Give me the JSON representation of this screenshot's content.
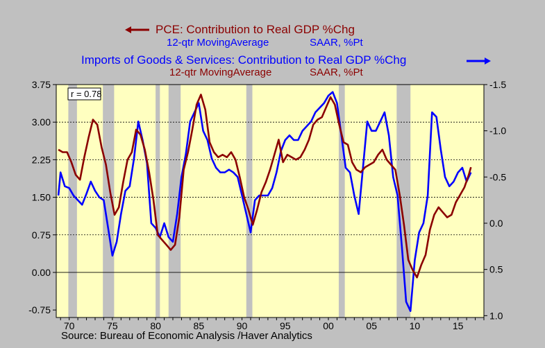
{
  "chart_data": {
    "type": "line",
    "legend": {
      "pce": {
        "arrow": "left",
        "title": "PCE: Contribution to Real GDP %Chg",
        "sub_left": "12-qtr MovingAverage",
        "sub_right": "SAAR, %Pt"
      },
      "imports": {
        "arrow": "right",
        "title": "Imports of Goods & Services: Contribution to Real GDP %Chg",
        "sub_left": "12-qtr MovingAverage",
        "sub_right": "SAAR, %Pt"
      }
    },
    "annotation": "r = 0.78",
    "source": "Source:  Bureau of Economic Analysis /Haver Analytics",
    "x_ticks": [
      "70",
      "75",
      "80",
      "85",
      "90",
      "95",
      "00",
      "05",
      "10",
      "15"
    ],
    "x_tick_years": [
      1970,
      1975,
      1980,
      1985,
      1990,
      1995,
      2000,
      2005,
      2010,
      2015
    ],
    "xlim": [
      1968.5,
      2018.0
    ],
    "left_axis": {
      "ticks": [
        "3.75",
        "3.00",
        "2.25",
        "1.50",
        "0.75",
        "0.00",
        "-0.75"
      ],
      "tick_values": [
        3.75,
        3.0,
        2.25,
        1.5,
        0.75,
        0.0,
        -0.75
      ],
      "ylim": [
        -0.9,
        3.75
      ]
    },
    "right_axis": {
      "ticks": [
        "-1.5",
        "-1.0",
        "-0.5",
        "0.0",
        "0.5",
        "1.0"
      ],
      "tick_values": [
        -1.5,
        -1.0,
        -0.5,
        0.0,
        0.5,
        1.0
      ],
      "ylim": [
        -1.5,
        1.02
      ],
      "inverted": true
    },
    "gridlines_left": [
      3.0,
      2.25,
      1.5,
      0.75,
      0.0
    ],
    "recessions": [
      [
        1969.9,
        1970.9
      ],
      [
        1973.9,
        1975.2
      ],
      [
        1980.0,
        1980.5
      ],
      [
        1981.5,
        1982.9
      ],
      [
        1990.5,
        1991.2
      ],
      [
        2001.2,
        2001.9
      ],
      [
        2007.9,
        2009.5
      ]
    ],
    "colors": {
      "pce": "#8b0000",
      "imports": "#0000ff",
      "plot_bg": "#ffffc0",
      "recession": "#c0c0c0",
      "background": "#c0c0c0"
    },
    "series": [
      {
        "key": "pce",
        "name": "PCE: Contribution to Real GDP %Chg",
        "axis": "left",
        "x": [
          1968.75,
          1969.25,
          1969.75,
          1970.25,
          1970.75,
          1971.25,
          1971.75,
          1972.25,
          1972.75,
          1973.25,
          1973.75,
          1974.25,
          1974.75,
          1975.25,
          1975.75,
          1976.25,
          1976.75,
          1977.25,
          1977.75,
          1978.25,
          1978.75,
          1979.25,
          1979.75,
          1980.25,
          1980.75,
          1981.25,
          1981.75,
          1982.25,
          1982.75,
          1983.25,
          1983.75,
          1984.25,
          1984.75,
          1985.25,
          1985.75,
          1986.25,
          1986.75,
          1987.25,
          1987.75,
          1988.25,
          1988.75,
          1989.25,
          1989.75,
          1990.25,
          1990.75,
          1991.25,
          1991.75,
          1992.25,
          1992.75,
          1993.25,
          1993.75,
          1994.25,
          1994.75,
          1995.25,
          1995.75,
          1996.25,
          1996.75,
          1997.25,
          1997.75,
          1998.25,
          1998.75,
          1999.25,
          1999.75,
          2000.25,
          2000.75,
          2001.25,
          2001.75,
          2002.25,
          2002.75,
          2003.25,
          2003.75,
          2004.25,
          2004.75,
          2005.25,
          2005.75,
          2006.25,
          2006.75,
          2007.25,
          2007.75,
          2008.25,
          2008.75,
          2009.25,
          2009.75,
          2010.25,
          2010.75,
          2011.25,
          2011.75,
          2012.25,
          2012.75,
          2013.25,
          2013.75,
          2014.25,
          2014.75,
          2015.25,
          2015.75,
          2016.25,
          2016.5
        ],
        "values": [
          2.45,
          2.4,
          2.4,
          2.2,
          1.95,
          1.85,
          2.3,
          2.7,
          3.05,
          2.95,
          2.5,
          2.15,
          1.6,
          1.15,
          1.3,
          1.8,
          2.25,
          2.4,
          2.85,
          2.75,
          2.45,
          2.0,
          1.45,
          0.75,
          0.65,
          0.55,
          0.45,
          0.55,
          1.1,
          2.05,
          2.4,
          2.85,
          3.35,
          3.55,
          3.25,
          2.6,
          2.4,
          2.3,
          2.35,
          2.3,
          2.4,
          2.25,
          1.9,
          1.5,
          1.25,
          0.95,
          1.25,
          1.6,
          1.8,
          2.05,
          2.35,
          2.65,
          2.2,
          2.35,
          2.3,
          2.25,
          2.3,
          2.45,
          2.65,
          2.95,
          3.05,
          3.1,
          3.3,
          3.5,
          3.35,
          2.95,
          2.6,
          2.55,
          2.2,
          2.05,
          2.0,
          2.1,
          2.15,
          2.2,
          2.35,
          2.45,
          2.25,
          2.15,
          2.05,
          1.55,
          0.95,
          0.25,
          0.05,
          -0.1,
          0.15,
          0.35,
          0.85,
          1.15,
          1.3,
          1.2,
          1.1,
          1.15,
          1.4,
          1.55,
          1.7,
          1.95,
          2.1
        ]
      },
      {
        "key": "imports",
        "name": "Imports of Goods & Services: Contribution to Real GDP %Chg",
        "axis": "right",
        "x": [
          1968.75,
          1969.0,
          1969.5,
          1970.0,
          1970.5,
          1971.0,
          1971.5,
          1972.0,
          1972.5,
          1973.0,
          1973.5,
          1974.0,
          1974.5,
          1975.0,
          1975.5,
          1976.0,
          1976.5,
          1977.0,
          1977.5,
          1978.0,
          1978.5,
          1979.0,
          1979.5,
          1980.0,
          1980.5,
          1981.0,
          1981.5,
          1982.0,
          1982.5,
          1983.0,
          1983.5,
          1984.0,
          1984.5,
          1985.0,
          1985.5,
          1986.0,
          1986.5,
          1987.0,
          1987.5,
          1988.0,
          1988.5,
          1989.0,
          1989.5,
          1990.0,
          1990.5,
          1991.0,
          1991.5,
          1992.0,
          1992.5,
          1993.0,
          1993.5,
          1994.0,
          1994.5,
          1995.0,
          1995.5,
          1996.0,
          1996.5,
          1997.0,
          1997.5,
          1998.0,
          1998.5,
          1999.0,
          1999.5,
          2000.0,
          2000.5,
          2001.0,
          2001.5,
          2002.0,
          2002.5,
          2003.0,
          2003.5,
          2004.0,
          2004.5,
          2005.0,
          2005.5,
          2006.0,
          2006.5,
          2007.0,
          2007.5,
          2008.0,
          2008.5,
          2009.0,
          2009.5,
          2010.0,
          2010.5,
          2011.0,
          2011.5,
          2012.0,
          2012.5,
          2013.0,
          2013.5,
          2014.0,
          2014.5,
          2015.0,
          2015.5,
          2016.0,
          2016.5
        ],
        "values": [
          -0.3,
          -0.55,
          -0.4,
          -0.38,
          -0.3,
          -0.25,
          -0.2,
          -0.32,
          -0.45,
          -0.35,
          -0.28,
          -0.25,
          0.05,
          0.35,
          0.2,
          -0.1,
          -0.35,
          -0.4,
          -0.7,
          -1.1,
          -0.9,
          -0.65,
          0.0,
          0.05,
          0.15,
          0.0,
          0.15,
          0.2,
          -0.1,
          -0.5,
          -0.75,
          -1.1,
          -1.2,
          -1.3,
          -1.0,
          -0.9,
          -0.7,
          -0.6,
          -0.55,
          -0.55,
          -0.58,
          -0.55,
          -0.5,
          -0.3,
          -0.1,
          0.1,
          -0.25,
          -0.3,
          -0.3,
          -0.3,
          -0.38,
          -0.55,
          -0.78,
          -0.9,
          -0.95,
          -0.9,
          -0.9,
          -1.0,
          -1.05,
          -1.1,
          -1.2,
          -1.25,
          -1.3,
          -1.38,
          -1.42,
          -1.3,
          -0.95,
          -0.6,
          -0.55,
          -0.3,
          -0.1,
          -0.6,
          -1.1,
          -1.0,
          -1.0,
          -1.1,
          -1.2,
          -0.95,
          -0.5,
          -0.3,
          0.25,
          0.85,
          0.95,
          0.4,
          0.1,
          0.0,
          -0.3,
          -1.2,
          -1.15,
          -0.8,
          -0.5,
          -0.4,
          -0.45,
          -0.55,
          -0.6,
          -0.45,
          -0.55
        ]
      }
    ]
  }
}
